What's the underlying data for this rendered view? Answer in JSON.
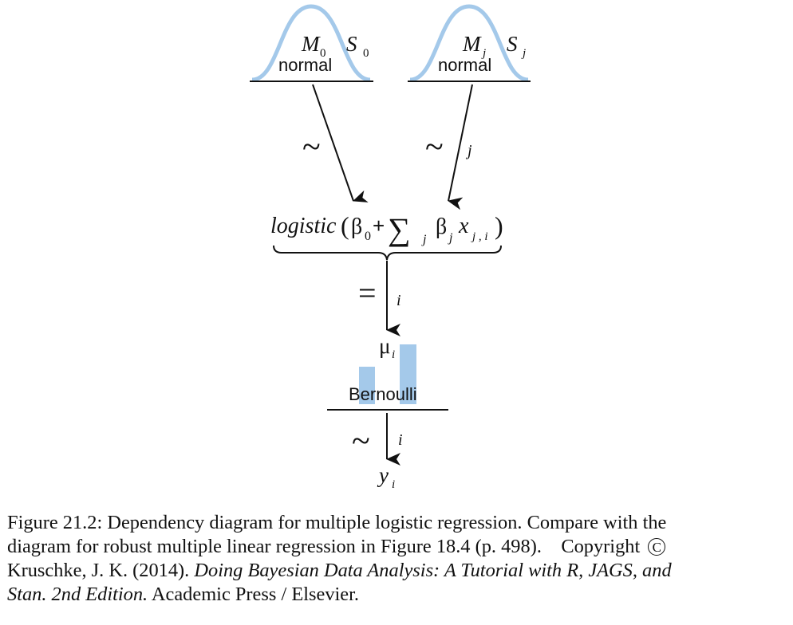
{
  "diagram": {
    "prior_intercept": {
      "dist": "normal",
      "param_mean": "M",
      "param_mean_sub": "0",
      "param_sd": "S",
      "param_sd_sub": "0"
    },
    "prior_slope": {
      "dist": "normal",
      "param_mean": "M",
      "param_mean_sub": "j",
      "param_sd": "S",
      "param_sd_sub": "j"
    },
    "arrow_left_symbol": "~",
    "arrow_right_symbol": "~",
    "arrow_right_index": "j",
    "link_function": {
      "name": "logistic",
      "open_paren": "(",
      "beta0": "β",
      "beta0_sub": "0",
      "plus": "+",
      "sum": "∑",
      "sum_sub": "j",
      "betaj": "β",
      "betaj_sub": "j",
      "x": "x",
      "x_sub": "j , i",
      "close_paren": ")"
    },
    "equals_symbol": "=",
    "equals_index": "i",
    "mu_symbol": "μ",
    "mu_sub": "i",
    "likelihood_dist": "Bernoulli",
    "bottom_arrow_symbol": "~",
    "bottom_arrow_index": "i",
    "y_symbol": "y",
    "y_sub": "i",
    "colors": {
      "curve": "#a4c9ea",
      "bars": "#a4c9ea",
      "ink": "#111111"
    }
  },
  "caption": {
    "line1": "Figure 21.2: Dependency diagram for multiple logistic regression. Compare with the",
    "line2": "diagram for robust multiple linear regression in Figure 18.4 (p. 498).",
    "copyright_word": "Copyright",
    "copyright_symbol": "C",
    "line3_prefix": "Kruschke, J. K. (2014). ",
    "line3_italic": "Doing Bayesian Data Analysis: A Tutorial with R, JAGS, and",
    "line4_italic": "Stan. 2nd Edition.",
    "line4_suffix": " Academic Press / Elsevier."
  }
}
